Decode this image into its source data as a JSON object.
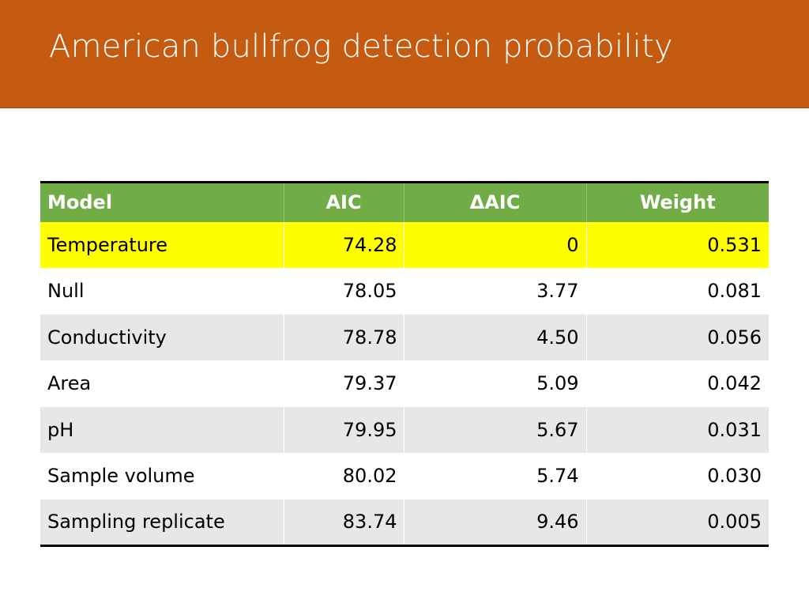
{
  "slide": {
    "title": "American bullfrog detection probability"
  },
  "colors": {
    "title_bar": "#c55a11",
    "header_row": "#70ad47",
    "highlight_row": "#ffff00",
    "band_row": "#e7e7e7"
  },
  "table": {
    "headers": {
      "model": "Model",
      "aic": "AIC",
      "delta_aic": "ΔAIC",
      "weight": "Weight"
    },
    "rows": [
      {
        "model": "Temperature",
        "aic": "74.28",
        "delta_aic": "0",
        "weight": "0.531",
        "highlighted": true
      },
      {
        "model": "Null",
        "aic": "78.05",
        "delta_aic": "3.77",
        "weight": "0.081"
      },
      {
        "model": "Conductivity",
        "aic": "78.78",
        "delta_aic": "4.50",
        "weight": "0.056"
      },
      {
        "model": "Area",
        "aic": "79.37",
        "delta_aic": "5.09",
        "weight": "0.042"
      },
      {
        "model": "pH",
        "aic": "79.95",
        "delta_aic": "5.67",
        "weight": "0.031"
      },
      {
        "model": "Sample volume",
        "aic": "80.02",
        "delta_aic": "5.74",
        "weight": "0.030"
      },
      {
        "model": "Sampling replicate",
        "aic": "83.74",
        "delta_aic": "9.46",
        "weight": "0.005"
      }
    ]
  }
}
